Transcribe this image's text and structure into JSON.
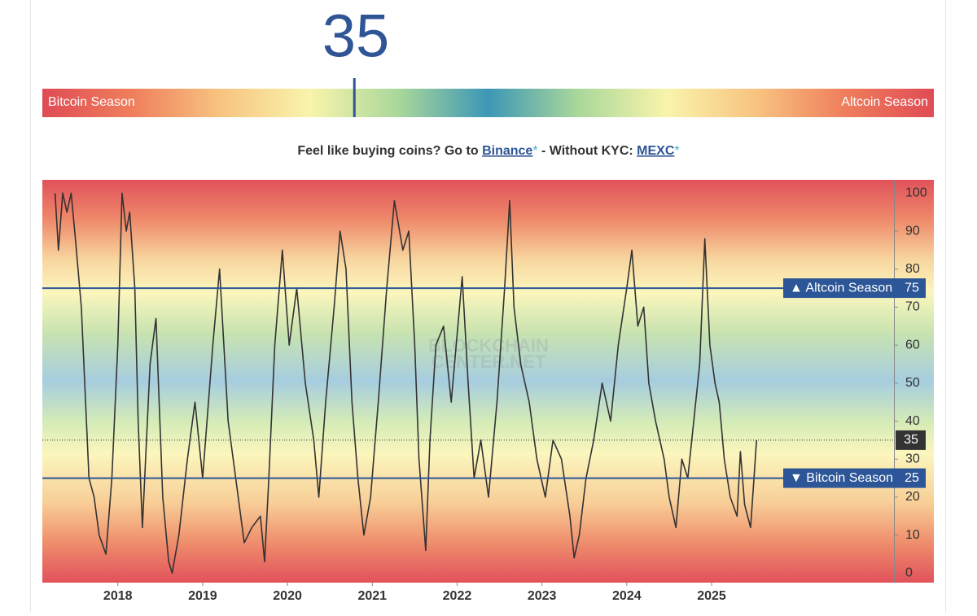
{
  "gauge": {
    "value": 35,
    "lim": [
      0,
      100
    ],
    "left_label": "Bitcoin Season",
    "right_label": "Altcoin Season"
  },
  "promo": {
    "text1": "Feel like buying coins? Go to",
    "link1": "Binance",
    "star": "*",
    "text2": "- Without KYC:",
    "link2": "MEXC"
  },
  "chart_data": {
    "type": "line",
    "color": "#333333",
    "watermark": [
      "BLOCKCHAIN",
      "CENTER.NET"
    ],
    "x": [
      2017.26,
      2017.3,
      2017.35,
      2017.4,
      2017.45,
      2017.5,
      2017.57,
      2017.62,
      2017.66,
      2017.72,
      2017.78,
      2017.86,
      2017.93,
      2018.0,
      2018.05,
      2018.1,
      2018.14,
      2018.2,
      2018.24,
      2018.29,
      2018.38,
      2018.45,
      2018.53,
      2018.6,
      2018.64,
      2018.72,
      2018.82,
      2018.91,
      2019.0,
      2019.12,
      2019.2,
      2019.3,
      2019.39,
      2019.49,
      2019.58,
      2019.68,
      2019.73,
      2019.78,
      2019.85,
      2019.94,
      2020.02,
      2020.11,
      2020.21,
      2020.31,
      2020.37,
      2020.45,
      2020.55,
      2020.62,
      2020.69,
      2020.76,
      2020.83,
      2020.9,
      2020.98,
      2021.07,
      2021.17,
      2021.26,
      2021.36,
      2021.43,
      2021.5,
      2021.55,
      2021.6,
      2021.63,
      2021.68,
      2021.75,
      2021.84,
      2021.93,
      2022.06,
      2022.13,
      2022.2,
      2022.28,
      2022.37,
      2022.47,
      2022.56,
      2022.62,
      2022.67,
      2022.75,
      2022.85,
      2022.94,
      2023.04,
      2023.13,
      2023.23,
      2023.33,
      2023.38,
      2023.44,
      2023.52,
      2023.61,
      2023.71,
      2023.81,
      2023.9,
      2024.0,
      2024.06,
      2024.13,
      2024.2,
      2024.26,
      2024.34,
      2024.44,
      2024.5,
      2024.58,
      2024.65,
      2024.72,
      2024.79,
      2024.86,
      2024.92,
      2024.98,
      2025.04,
      2025.09,
      2025.15,
      2025.22,
      2025.3,
      2025.34,
      2025.39,
      2025.46,
      2025.5,
      2025.53
    ],
    "values": [
      100,
      85,
      100,
      95,
      100,
      88,
      70,
      45,
      25,
      20,
      10,
      5,
      25,
      60,
      100,
      90,
      95,
      75,
      40,
      12,
      55,
      67,
      20,
      3,
      0,
      10,
      30,
      45,
      25,
      60,
      80,
      40,
      25,
      8,
      12,
      15,
      3,
      25,
      60,
      85,
      60,
      75,
      50,
      35,
      20,
      45,
      70,
      90,
      80,
      45,
      25,
      10,
      20,
      45,
      75,
      98,
      85,
      90,
      60,
      30,
      15,
      6,
      35,
      60,
      65,
      45,
      78,
      50,
      25,
      35,
      20,
      45,
      75,
      98,
      70,
      55,
      45,
      30,
      20,
      35,
      30,
      15,
      4,
      10,
      25,
      35,
      50,
      40,
      60,
      75,
      85,
      65,
      70,
      50,
      40,
      30,
      20,
      12,
      30,
      25,
      40,
      55,
      88,
      60,
      50,
      45,
      30,
      20,
      15,
      32,
      18,
      12,
      25,
      35
    ],
    "xlim": [
      2017.11,
      2027.15
    ],
    "xticks": [
      2018,
      2019,
      2020,
      2021,
      2022,
      2023,
      2024,
      2025
    ],
    "ylim": [
      -2.5,
      103.5
    ],
    "yticks": [
      0,
      10,
      20,
      30,
      40,
      50,
      60,
      70,
      80,
      90,
      100
    ],
    "reference_lines": [
      {
        "value": 75,
        "label": "▲ Altcoin Season"
      },
      {
        "value": 25,
        "label": "▼ Bitcoin Season"
      }
    ],
    "current": 35
  }
}
